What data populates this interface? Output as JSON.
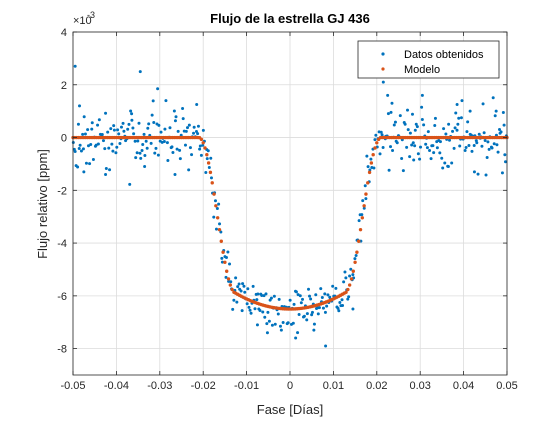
{
  "chart_data": {
    "type": "scatter",
    "title": "Flujo de la estrella GJ 436",
    "xlabel": "Fase [Días]",
    "ylabel": "Flujo relativo [ppm]",
    "y_exponent_label": "×10",
    "y_exponent_power": "-3",
    "xlim": [
      -0.05,
      0.05
    ],
    "ylim": [
      -9,
      4
    ],
    "x_ticks": [
      -0.05,
      -0.04,
      -0.03,
      -0.02,
      -0.01,
      0,
      0.01,
      0.02,
      0.03,
      0.04,
      0.05
    ],
    "x_tick_labels": [
      "-0.05",
      "-0.04",
      "-0.03",
      "-0.02",
      "-0.01",
      "0",
      "0.01",
      "0.02",
      "0.03",
      "0.04",
      "0.05"
    ],
    "y_ticks": [
      -8,
      -6,
      -4,
      -2,
      0,
      2,
      4
    ],
    "y_tick_labels": [
      "-8",
      "-6",
      "-4",
      "-2",
      "0",
      "2",
      "4"
    ],
    "grid": true,
    "legend_position": "top-right",
    "transit_model": {
      "baseline": 0.0,
      "ingress_start": -0.021,
      "ingress_end": -0.0125,
      "egress_start": 0.0125,
      "egress_end": 0.021,
      "depth_edge": -5.9,
      "depth_center": -6.5
    },
    "series": [
      {
        "name": "Datos obtenidos",
        "color": "#0072BD",
        "marker": "dot",
        "num_points": 430,
        "noise_out_of_transit": 0.55,
        "noise_in_transit": 0.45,
        "outliers": [
          {
            "x": -0.0495,
            "y": 2.7
          },
          {
            "x": -0.0485,
            "y": 1.2
          },
          {
            "x": -0.0475,
            "y": -1.3
          },
          {
            "x": -0.0345,
            "y": 2.5
          },
          {
            "x": -0.0365,
            "y": 0.9
          },
          {
            "x": -0.0305,
            "y": 1.85
          },
          {
            "x": -0.0215,
            "y": 1.25
          },
          {
            "x": -0.0265,
            "y": -1.4
          },
          {
            "x": -0.0335,
            "y": -1.1
          },
          {
            "x": -0.0425,
            "y": -1.4
          },
          {
            "x": 0.0082,
            "y": -7.9
          },
          {
            "x": 0.0013,
            "y": -7.6
          },
          {
            "x": -0.0052,
            "y": -7.4
          },
          {
            "x": 0.0055,
            "y": -7.3
          },
          {
            "x": 0.0145,
            "y": -6.5
          },
          {
            "x": -0.0075,
            "y": -7.1
          },
          {
            "x": 0.0225,
            "y": 1.6
          },
          {
            "x": 0.0215,
            "y": 2.1
          },
          {
            "x": 0.0235,
            "y": 1.3
          },
          {
            "x": 0.0305,
            "y": 1.6
          },
          {
            "x": 0.0385,
            "y": 1.25
          },
          {
            "x": 0.0395,
            "y": 0.75
          },
          {
            "x": 0.0415,
            "y": 1.0
          },
          {
            "x": 0.0475,
            "y": 1.0
          },
          {
            "x": 0.0425,
            "y": -1.3
          },
          {
            "x": 0.0495,
            "y": -0.65
          },
          {
            "x": 0.0365,
            "y": -1.1
          },
          {
            "x": 0.0285,
            "y": -0.85
          },
          {
            "x": 0.0325,
            "y": -0.8
          }
        ]
      },
      {
        "name": "Modelo",
        "color": "#D95319",
        "marker": "dot",
        "num_points": 240
      }
    ]
  }
}
